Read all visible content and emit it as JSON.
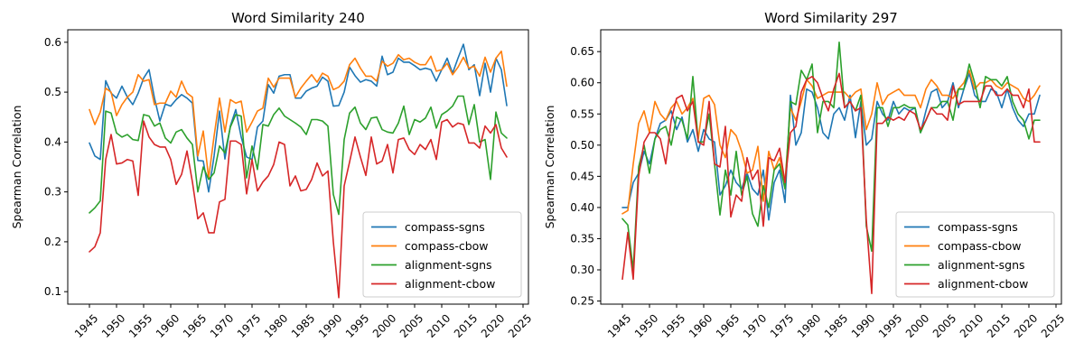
{
  "chart_data": [
    {
      "type": "line",
      "title": "Word Similarity 240",
      "xlabel": "",
      "ylabel": "Spearman Correlation",
      "xlim": [
        1941,
        2026
      ],
      "ylim": [
        0.075,
        0.625
      ],
      "xticks": [
        1945,
        1950,
        1955,
        1960,
        1965,
        1970,
        1975,
        1980,
        1985,
        1990,
        1995,
        2000,
        2005,
        2010,
        2015,
        2020,
        2025
      ],
      "yticks": [
        0.1,
        0.2,
        0.3,
        0.4,
        0.5,
        0.6
      ],
      "legend_position": "lower right",
      "grid": false,
      "x": [
        1945,
        1946,
        1947,
        1948,
        1949,
        1950,
        1951,
        1952,
        1953,
        1954,
        1955,
        1956,
        1957,
        1958,
        1959,
        1960,
        1961,
        1962,
        1963,
        1964,
        1965,
        1966,
        1967,
        1968,
        1969,
        1970,
        1971,
        1972,
        1973,
        1974,
        1975,
        1976,
        1977,
        1978,
        1979,
        1980,
        1981,
        1982,
        1983,
        1984,
        1985,
        1986,
        1987,
        1988,
        1989,
        1990,
        1991,
        1992,
        1993,
        1994,
        1995,
        1996,
        1997,
        1998,
        1999,
        2000,
        2001,
        2002,
        2003,
        2004,
        2005,
        2006,
        2007,
        2008,
        2009,
        2010,
        2011,
        2012,
        2013,
        2014,
        2015,
        2016,
        2017,
        2018,
        2019,
        2020,
        2021,
        2022
      ],
      "series": [
        {
          "name": "compass-sgns",
          "color": "#1f77b4",
          "values": [
            0.398,
            0.372,
            0.365,
            0.523,
            0.498,
            0.488,
            0.512,
            0.49,
            0.475,
            0.498,
            0.528,
            0.545,
            0.488,
            0.442,
            0.476,
            0.472,
            0.485,
            0.495,
            0.488,
            0.478,
            0.363,
            0.362,
            0.3,
            0.372,
            0.462,
            0.366,
            0.432,
            0.465,
            0.41,
            0.37,
            0.365,
            0.43,
            0.442,
            0.515,
            0.498,
            0.532,
            0.535,
            0.535,
            0.488,
            0.488,
            0.502,
            0.508,
            0.512,
            0.53,
            0.522,
            0.472,
            0.473,
            0.5,
            0.55,
            0.533,
            0.52,
            0.525,
            0.522,
            0.512,
            0.572,
            0.535,
            0.54,
            0.568,
            0.56,
            0.56,
            0.553,
            0.545,
            0.548,
            0.545,
            0.522,
            0.545,
            0.568,
            0.538,
            0.568,
            0.596,
            0.545,
            0.555,
            0.493,
            0.558,
            0.5,
            0.568,
            0.545,
            0.473
          ]
        },
        {
          "name": "compass-cbow",
          "color": "#ff7f0e",
          "values": [
            0.465,
            0.435,
            0.46,
            0.508,
            0.5,
            0.453,
            0.475,
            0.49,
            0.5,
            0.535,
            0.522,
            0.525,
            0.475,
            0.478,
            0.478,
            0.502,
            0.49,
            0.522,
            0.498,
            0.49,
            0.372,
            0.422,
            0.328,
            0.412,
            0.488,
            0.42,
            0.485,
            0.478,
            0.482,
            0.42,
            0.44,
            0.462,
            0.468,
            0.528,
            0.51,
            0.528,
            0.528,
            0.528,
            0.49,
            0.508,
            0.522,
            0.535,
            0.52,
            0.538,
            0.532,
            0.505,
            0.51,
            0.522,
            0.555,
            0.568,
            0.548,
            0.532,
            0.532,
            0.522,
            0.562,
            0.552,
            0.558,
            0.575,
            0.565,
            0.568,
            0.56,
            0.555,
            0.555,
            0.572,
            0.542,
            0.545,
            0.558,
            0.535,
            0.55,
            0.57,
            0.548,
            0.552,
            0.532,
            0.57,
            0.54,
            0.568,
            0.582,
            0.512
          ]
        },
        {
          "name": "alignment-sgns",
          "color": "#2ca02c",
          "values": [
            0.258,
            0.268,
            0.282,
            0.462,
            0.458,
            0.418,
            0.41,
            0.415,
            0.405,
            0.403,
            0.455,
            0.452,
            0.432,
            0.438,
            0.408,
            0.398,
            0.42,
            0.425,
            0.408,
            0.395,
            0.3,
            0.35,
            0.325,
            0.338,
            0.392,
            0.378,
            0.43,
            0.455,
            0.452,
            0.328,
            0.392,
            0.345,
            0.435,
            0.432,
            0.455,
            0.468,
            0.452,
            0.445,
            0.438,
            0.43,
            0.415,
            0.445,
            0.445,
            0.442,
            0.432,
            0.295,
            0.255,
            0.405,
            0.458,
            0.47,
            0.438,
            0.425,
            0.448,
            0.45,
            0.425,
            0.42,
            0.418,
            0.438,
            0.472,
            0.415,
            0.445,
            0.44,
            0.448,
            0.47,
            0.428,
            0.455,
            0.462,
            0.472,
            0.492,
            0.492,
            0.435,
            0.475,
            0.4,
            0.405,
            0.325,
            0.46,
            0.418,
            0.408
          ]
        },
        {
          "name": "alignment-cbow",
          "color": "#d62728",
          "values": [
            0.18,
            0.19,
            0.218,
            0.365,
            0.415,
            0.356,
            0.358,
            0.365,
            0.362,
            0.293,
            0.442,
            0.41,
            0.395,
            0.39,
            0.39,
            0.365,
            0.315,
            0.335,
            0.382,
            0.32,
            0.246,
            0.258,
            0.218,
            0.218,
            0.28,
            0.285,
            0.402,
            0.402,
            0.395,
            0.296,
            0.365,
            0.302,
            0.32,
            0.332,
            0.355,
            0.4,
            0.395,
            0.312,
            0.332,
            0.302,
            0.305,
            0.325,
            0.358,
            0.332,
            0.342,
            0.2,
            0.088,
            0.312,
            0.36,
            0.41,
            0.37,
            0.333,
            0.41,
            0.356,
            0.362,
            0.395,
            0.338,
            0.405,
            0.408,
            0.385,
            0.375,
            0.395,
            0.385,
            0.405,
            0.365,
            0.44,
            0.445,
            0.43,
            0.438,
            0.435,
            0.398,
            0.398,
            0.388,
            0.432,
            0.418,
            0.435,
            0.388,
            0.37
          ]
        }
      ]
    },
    {
      "type": "line",
      "title": "Word Similarity 297",
      "xlabel": "",
      "ylabel": "Spearman Correlation",
      "xlim": [
        1941,
        2026
      ],
      "ylim": [
        0.245,
        0.685
      ],
      "xticks": [
        1945,
        1950,
        1955,
        1960,
        1965,
        1970,
        1975,
        1980,
        1985,
        1990,
        1995,
        2000,
        2005,
        2010,
        2015,
        2020,
        2025
      ],
      "yticks": [
        0.25,
        0.3,
        0.35,
        0.4,
        0.45,
        0.5,
        0.55,
        0.6,
        0.65
      ],
      "legend_position": "lower right",
      "grid": false,
      "x": [
        1945,
        1946,
        1947,
        1948,
        1949,
        1950,
        1951,
        1952,
        1953,
        1954,
        1955,
        1956,
        1957,
        1958,
        1959,
        1960,
        1961,
        1962,
        1963,
        1964,
        1965,
        1966,
        1967,
        1968,
        1969,
        1970,
        1971,
        1972,
        1973,
        1974,
        1975,
        1976,
        1977,
        1978,
        1979,
        1980,
        1981,
        1982,
        1983,
        1984,
        1985,
        1986,
        1987,
        1988,
        1989,
        1990,
        1991,
        1992,
        1993,
        1994,
        1995,
        1996,
        1997,
        1998,
        1999,
        2000,
        2001,
        2002,
        2003,
        2004,
        2005,
        2006,
        2007,
        2008,
        2009,
        2010,
        2011,
        2012,
        2013,
        2014,
        2015,
        2016,
        2017,
        2018,
        2019,
        2020,
        2021,
        2022
      ],
      "series": [
        {
          "name": "compass-sgns",
          "color": "#1f77b4",
          "values": [
            0.4,
            0.4,
            0.44,
            0.455,
            0.49,
            0.47,
            0.51,
            0.535,
            0.54,
            0.555,
            0.525,
            0.545,
            0.505,
            0.525,
            0.49,
            0.525,
            0.51,
            0.505,
            0.42,
            0.435,
            0.46,
            0.44,
            0.43,
            0.455,
            0.43,
            0.42,
            0.46,
            0.38,
            0.44,
            0.46,
            0.408,
            0.58,
            0.5,
            0.52,
            0.59,
            0.585,
            0.56,
            0.52,
            0.51,
            0.55,
            0.56,
            0.54,
            0.58,
            0.512,
            0.57,
            0.5,
            0.51,
            0.57,
            0.55,
            0.54,
            0.57,
            0.55,
            0.56,
            0.555,
            0.56,
            0.52,
            0.555,
            0.585,
            0.59,
            0.56,
            0.57,
            0.6,
            0.56,
            0.59,
            0.615,
            0.58,
            0.57,
            0.57,
            0.59,
            0.585,
            0.56,
            0.59,
            0.56,
            0.54,
            0.53,
            0.55,
            0.55,
            0.58
          ]
        },
        {
          "name": "compass-cbow",
          "color": "#ff7f0e",
          "values": [
            0.39,
            0.395,
            0.47,
            0.535,
            0.555,
            0.52,
            0.57,
            0.55,
            0.54,
            0.56,
            0.57,
            0.55,
            0.56,
            0.575,
            0.51,
            0.575,
            0.58,
            0.565,
            0.5,
            0.48,
            0.525,
            0.515,
            0.49,
            0.455,
            0.46,
            0.498,
            0.41,
            0.49,
            0.46,
            0.48,
            0.44,
            0.56,
            0.54,
            0.57,
            0.605,
            0.595,
            0.575,
            0.58,
            0.585,
            0.585,
            0.585,
            0.585,
            0.575,
            0.585,
            0.59,
            0.525,
            0.55,
            0.6,
            0.565,
            0.58,
            0.585,
            0.59,
            0.58,
            0.58,
            0.58,
            0.56,
            0.59,
            0.605,
            0.595,
            0.58,
            0.58,
            0.575,
            0.59,
            0.6,
            0.62,
            0.59,
            0.6,
            0.6,
            0.605,
            0.595,
            0.59,
            0.6,
            0.595,
            0.59,
            0.575,
            0.57,
            0.58,
            0.595
          ]
        },
        {
          "name": "alignment-sgns",
          "color": "#2ca02c",
          "values": [
            0.382,
            0.372,
            0.3,
            0.465,
            0.5,
            0.455,
            0.51,
            0.525,
            0.53,
            0.5,
            0.545,
            0.54,
            0.51,
            0.61,
            0.505,
            0.505,
            0.55,
            0.47,
            0.388,
            0.46,
            0.42,
            0.49,
            0.42,
            0.45,
            0.39,
            0.37,
            0.435,
            0.4,
            0.46,
            0.47,
            0.43,
            0.57,
            0.565,
            0.62,
            0.605,
            0.63,
            0.52,
            0.57,
            0.57,
            0.56,
            0.665,
            0.56,
            0.57,
            0.555,
            0.58,
            0.37,
            0.33,
            0.56,
            0.56,
            0.53,
            0.56,
            0.56,
            0.565,
            0.56,
            0.56,
            0.52,
            0.54,
            0.56,
            0.56,
            0.57,
            0.57,
            0.54,
            0.59,
            0.59,
            0.63,
            0.6,
            0.56,
            0.61,
            0.605,
            0.605,
            0.595,
            0.61,
            0.57,
            0.55,
            0.54,
            0.51,
            0.54,
            0.54
          ]
        },
        {
          "name": "alignment-cbow",
          "color": "#d62728",
          "values": [
            0.285,
            0.36,
            0.285,
            0.45,
            0.505,
            0.52,
            0.52,
            0.51,
            0.47,
            0.54,
            0.575,
            0.58,
            0.555,
            0.57,
            0.505,
            0.5,
            0.57,
            0.47,
            0.465,
            0.53,
            0.385,
            0.42,
            0.41,
            0.48,
            0.445,
            0.46,
            0.37,
            0.48,
            0.475,
            0.495,
            0.44,
            0.52,
            0.53,
            0.585,
            0.605,
            0.61,
            0.6,
            0.575,
            0.555,
            0.59,
            0.615,
            0.56,
            0.57,
            0.555,
            0.56,
            0.38,
            0.262,
            0.535,
            0.535,
            0.545,
            0.54,
            0.545,
            0.54,
            0.555,
            0.55,
            0.525,
            0.54,
            0.56,
            0.55,
            0.55,
            0.54,
            0.595,
            0.565,
            0.57,
            0.57,
            0.57,
            0.57,
            0.595,
            0.595,
            0.58,
            0.58,
            0.59,
            0.58,
            0.58,
            0.56,
            0.59,
            0.505,
            0.505
          ]
        }
      ]
    }
  ]
}
